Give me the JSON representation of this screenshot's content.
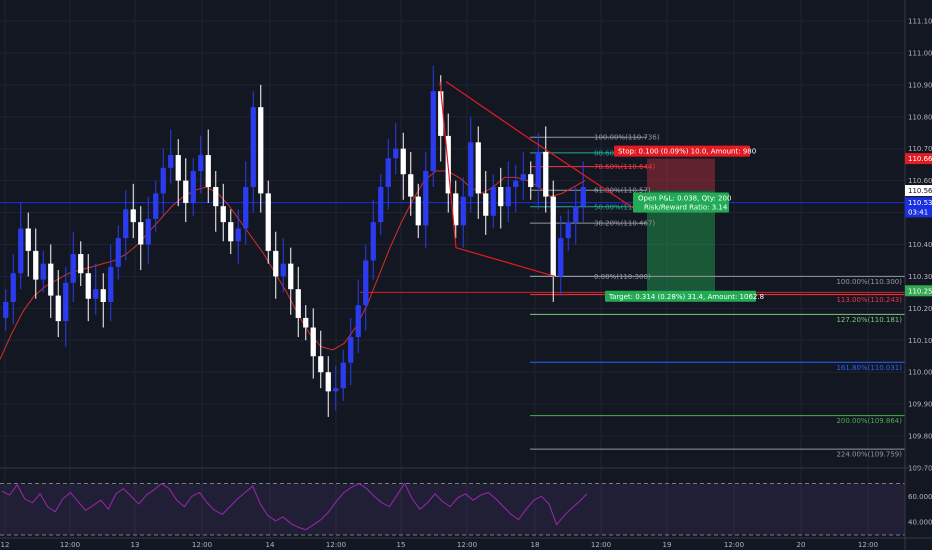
{
  "chart_data": {
    "type": "candlestick",
    "title": "",
    "ylim": [
      109.7,
      111.15
    ],
    "y_ticks": [
      "111.100",
      "111.000",
      "110.900",
      "110.800",
      "110.700",
      "110.600",
      "110.500",
      "110.400",
      "110.300",
      "110.200",
      "110.100",
      "110.000",
      "109.900",
      "109.800",
      "109.700"
    ],
    "x_ticks": [
      "12",
      "12:00",
      "13",
      "12:00",
      "14",
      "12:00",
      "15",
      "12:00",
      "18",
      "12:00",
      "19",
      "12:00",
      "20",
      "12:00"
    ],
    "price_labels": [
      {
        "label": "110.669",
        "value": 110.669,
        "color": "#e31b23"
      },
      {
        "label": "110.569",
        "value": 110.569,
        "color": "#ffffff"
      },
      {
        "label": "110.531",
        "value": 110.531,
        "color": "#1a2fe0"
      },
      {
        "label": "03:41",
        "value": 110.502,
        "color": "#1a2fe0"
      },
      {
        "label": "110.255",
        "value": 110.255,
        "color": "#35a854"
      }
    ],
    "close_series": [
      110.22,
      110.31,
      110.45,
      110.38,
      110.29,
      110.34,
      110.24,
      110.16,
      110.28,
      110.37,
      110.31,
      110.23,
      110.26,
      110.22,
      110.33,
      110.42,
      110.51,
      110.47,
      110.4,
      110.48,
      110.56,
      110.64,
      110.68,
      110.6,
      110.53,
      110.63,
      110.68,
      110.58,
      110.52,
      110.47,
      110.41,
      110.45,
      110.58,
      110.83,
      110.56,
      110.38,
      110.3,
      110.34,
      110.26,
      110.17,
      110.14,
      110.05,
      110.0,
      109.94,
      109.95,
      110.03,
      110.11,
      110.21,
      110.35,
      110.47,
      110.58,
      110.67,
      110.7,
      110.62,
      110.55,
      110.46,
      110.63,
      110.88,
      110.74,
      110.56,
      110.46,
      110.55,
      110.72,
      110.56,
      110.49,
      110.58,
      110.52,
      110.58,
      110.6,
      110.62,
      110.58,
      110.69,
      110.55,
      110.3,
      110.42,
      110.47,
      110.52,
      110.58
    ],
    "ma_series": [
      110.04,
      110.12,
      110.19,
      110.24,
      110.27,
      110.29,
      110.31,
      110.32,
      110.33,
      110.34,
      110.35,
      110.37,
      110.4,
      110.44,
      110.48,
      110.52,
      110.55,
      110.57,
      110.58,
      110.56,
      110.52,
      110.47,
      110.42,
      110.37,
      110.31,
      110.25,
      110.18,
      110.12,
      110.08,
      110.07,
      110.09,
      110.14,
      110.21,
      110.3,
      110.39,
      110.47,
      110.54,
      110.6,
      110.63,
      110.63,
      110.61,
      110.58,
      110.56,
      110.58,
      110.61,
      110.61,
      110.6,
      110.58,
      110.55,
      110.56,
      110.58,
      110.6
    ],
    "pattern": {
      "label": "triangle",
      "points": [
        [
          110.91,
          110.73
        ],
        [
          110.39,
          110.3
        ]
      ]
    },
    "range_line": 110.25,
    "fib_retracement": [
      {
        "label": "100.00%(110.736)",
        "value": 110.736,
        "color": "#9598a1"
      },
      {
        "label": "88.60%",
        "value": 110.687,
        "color": "#22ab94"
      },
      {
        "label": "78.60%(110.644)",
        "value": 110.644,
        "color": "#f23645"
      },
      {
        "label": "61.80%(110.57)",
        "value": 110.57,
        "color": "#9598a1"
      },
      {
        "label": "50.00%(110.5)",
        "value": 110.518,
        "color": "#22ab94"
      },
      {
        "label": "38.20%(110.467)",
        "value": 110.467,
        "color": "#9598a1"
      },
      {
        "label": "0.00%(110.300)",
        "value": 110.3,
        "color": "#9598a1"
      }
    ],
    "fib_extension": [
      {
        "label": "100.00%(110.300)",
        "value": 110.3,
        "color": "#9598a1"
      },
      {
        "label": "113.00%(110.243)",
        "value": 110.243,
        "color": "#f23645"
      },
      {
        "label": "127.20%(110.181)",
        "value": 110.181,
        "color": "#81c784"
      },
      {
        "label": "161.80%(110.031)",
        "value": 110.031,
        "color": "#2962ff"
      },
      {
        "label": "200.00%(109.864)",
        "value": 109.864,
        "color": "#4caf50"
      },
      {
        "label": "224.00%(109.759)",
        "value": 109.759,
        "color": "#9598a1"
      }
    ],
    "position": {
      "stop_label": "Stop: 0.100 (0.09%) 10.0, Amount: 980",
      "target_label": "Target: 0.314 (0.28%) 31.4, Amount: 1062.8",
      "pnl_line1": "Open P&L: 0.038, Qty: 200",
      "pnl_line2": "Risk/Reward Ratio: 3.14",
      "stop": 110.669,
      "entry": 110.569,
      "target": 110.255
    },
    "rsi": {
      "ticks": [
        "60.000",
        "40.000"
      ],
      "range": [
        30,
        75
      ],
      "upper": 70,
      "lower": 30,
      "values": [
        64,
        61,
        69,
        58,
        55,
        62,
        52,
        48,
        58,
        63,
        56,
        49,
        53,
        57,
        50,
        62,
        66,
        60,
        54,
        61,
        65,
        70,
        66,
        57,
        52,
        60,
        63,
        55,
        49,
        46,
        52,
        58,
        63,
        68,
        54,
        45,
        41,
        44,
        39,
        36,
        34,
        38,
        42,
        48,
        56,
        63,
        67,
        70,
        66,
        60,
        55,
        52,
        61,
        70,
        58,
        50,
        55,
        62,
        56,
        52,
        59,
        62,
        57,
        61,
        63,
        58,
        52,
        46,
        42,
        50,
        57,
        60,
        54,
        38,
        45,
        51,
        56,
        62
      ]
    },
    "colors": {
      "up": "#2b3cf0",
      "down": "#ffffff",
      "ma": "#d32f2f",
      "triangle": "#e31b23",
      "rsi": "#9c27b0",
      "background": "#131722"
    }
  }
}
